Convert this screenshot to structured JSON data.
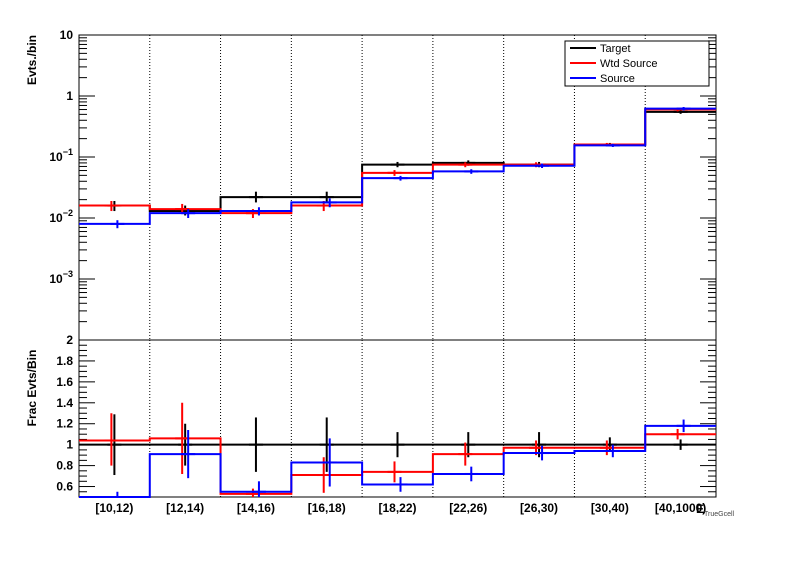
{
  "chart_data": [
    {
      "type": "step",
      "panel": "top",
      "ylabel": "Evts./bin",
      "yscale": "log",
      "ylim": [
        0.0001,
        10
      ],
      "y_tick_labels": [
        {
          "value": 10,
          "base": "10",
          "exp": ""
        },
        {
          "value": 1,
          "base": "1",
          "exp": ""
        },
        {
          "value": 0.1,
          "base": "10",
          "exp": "−1"
        },
        {
          "value": 0.01,
          "base": "10",
          "exp": "−2"
        },
        {
          "value": 0.001,
          "base": "10",
          "exp": "−3"
        }
      ],
      "categories": [
        "[10,12)",
        "[12,14)",
        "[14,16)",
        "[16,18)",
        "[18,22)",
        "[22,26)",
        "[26,30)",
        "[30,40)",
        "[40,1000)"
      ],
      "legend": {
        "placement": "top-right",
        "entries": [
          "Target",
          "Wtd Source",
          "Source"
        ]
      },
      "series": [
        {
          "name": "Target",
          "color": "#000000",
          "values": [
            0.016,
            0.013,
            0.022,
            0.022,
            0.075,
            0.08,
            0.075,
            0.16,
            0.55
          ],
          "err_lo": [
            0.013,
            0.011,
            0.018,
            0.018,
            0.068,
            0.072,
            0.068,
            0.15,
            0.51
          ],
          "err_hi": [
            0.019,
            0.016,
            0.027,
            0.027,
            0.083,
            0.088,
            0.083,
            0.17,
            0.59
          ]
        },
        {
          "name": "Wtd Source",
          "color": "#ff0000",
          "values": [
            0.016,
            0.014,
            0.012,
            0.016,
            0.055,
            0.075,
            0.075,
            0.16,
            0.6
          ],
          "err_lo": [
            0.013,
            0.012,
            0.01,
            0.013,
            0.049,
            0.068,
            0.068,
            0.15,
            0.56
          ],
          "err_hi": [
            0.019,
            0.017,
            0.014,
            0.019,
            0.061,
            0.082,
            0.082,
            0.17,
            0.64
          ]
        },
        {
          "name": "Source",
          "color": "#0000ff",
          "values": [
            0.008,
            0.012,
            0.013,
            0.018,
            0.045,
            0.058,
            0.072,
            0.155,
            0.62
          ],
          "err_lo": [
            0.0068,
            0.01,
            0.011,
            0.015,
            0.041,
            0.053,
            0.066,
            0.146,
            0.58
          ],
          "err_hi": [
            0.0092,
            0.014,
            0.015,
            0.021,
            0.049,
            0.063,
            0.078,
            0.164,
            0.66
          ]
        }
      ]
    },
    {
      "type": "step",
      "panel": "bottom",
      "ylabel": "Frac Evts/Bin",
      "ylim": [
        0.5,
        2.0
      ],
      "y_tick_labels": [
        "2",
        "1.8",
        "1.6",
        "1.4",
        "1.2",
        "1",
        "0.8",
        "0.6"
      ],
      "xlabel": "E",
      "xlabel_sub": "TrueGcell",
      "categories": [
        "[10,12)",
        "[12,14)",
        "[14,16)",
        "[16,18)",
        "[18,22)",
        "[22,26)",
        "[26,30)",
        "[30,40)",
        "[40,1000)"
      ],
      "series": [
        {
          "name": "Target",
          "color": "#000000",
          "values": [
            1,
            1,
            1,
            1,
            1,
            1,
            1,
            1,
            1
          ],
          "err_lo": [
            0.71,
            0.8,
            0.74,
            0.74,
            0.88,
            0.88,
            0.88,
            0.93,
            0.95
          ],
          "err_hi": [
            1.29,
            1.2,
            1.26,
            1.26,
            1.12,
            1.12,
            1.12,
            1.07,
            1.05
          ]
        },
        {
          "name": "Wtd Source",
          "color": "#ff0000",
          "values": [
            1.04,
            1.06,
            0.53,
            0.71,
            0.74,
            0.91,
            0.97,
            0.97,
            1.1
          ],
          "err_lo": [
            0.8,
            0.72,
            0.48,
            0.54,
            0.64,
            0.8,
            0.9,
            0.9,
            1.05
          ],
          "err_hi": [
            1.3,
            1.4,
            0.58,
            0.88,
            0.84,
            1.02,
            1.04,
            1.04,
            1.15
          ]
        },
        {
          "name": "Source",
          "color": "#0000ff",
          "values": [
            0.5,
            0.91,
            0.55,
            0.83,
            0.62,
            0.72,
            0.92,
            0.94,
            1.18
          ],
          "err_lo": [
            0.45,
            0.68,
            0.45,
            0.6,
            0.55,
            0.65,
            0.85,
            0.88,
            1.12
          ],
          "err_hi": [
            0.55,
            1.14,
            0.65,
            1.06,
            0.69,
            0.79,
            0.99,
            1.0,
            1.24
          ]
        }
      ]
    }
  ]
}
